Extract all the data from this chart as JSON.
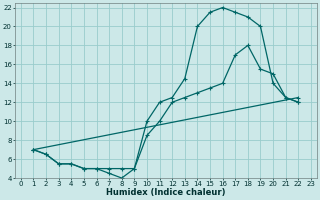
{
  "xlabel": "Humidex (Indice chaleur)",
  "bg_color": "#cce8e8",
  "grid_color": "#99cccc",
  "line_color": "#006666",
  "xlim": [
    -0.5,
    23.5
  ],
  "ylim": [
    4,
    22.5
  ],
  "xticks": [
    0,
    1,
    2,
    3,
    4,
    5,
    6,
    7,
    8,
    9,
    10,
    11,
    12,
    13,
    14,
    15,
    16,
    17,
    18,
    19,
    20,
    21,
    22,
    23
  ],
  "yticks": [
    4,
    6,
    8,
    10,
    12,
    14,
    16,
    18,
    20,
    22
  ],
  "curve1_x": [
    1,
    2,
    3,
    4,
    5,
    6,
    7,
    8,
    9,
    10,
    11,
    12,
    13,
    14,
    15,
    16,
    17,
    18,
    19,
    20,
    21,
    22
  ],
  "curve1_y": [
    7,
    6.5,
    5.5,
    5.5,
    5,
    5,
    4.5,
    4,
    5,
    10,
    12,
    12.5,
    14.5,
    20,
    21.5,
    22,
    21.5,
    21,
    20,
    14,
    12.5,
    12
  ],
  "curve2_x": [
    1,
    2,
    3,
    4,
    5,
    6,
    7,
    8,
    9,
    10,
    11,
    12,
    13,
    14,
    15,
    16,
    17,
    18,
    19,
    20,
    21,
    22
  ],
  "curve2_y": [
    7,
    6.5,
    5.5,
    5.5,
    5,
    5,
    5,
    5,
    5,
    8.5,
    10,
    12,
    12.5,
    13,
    13.5,
    14,
    17,
    18,
    15.5,
    15,
    12.5,
    12
  ],
  "curve3_x": [
    1,
    22
  ],
  "curve3_y": [
    7,
    12.5
  ]
}
